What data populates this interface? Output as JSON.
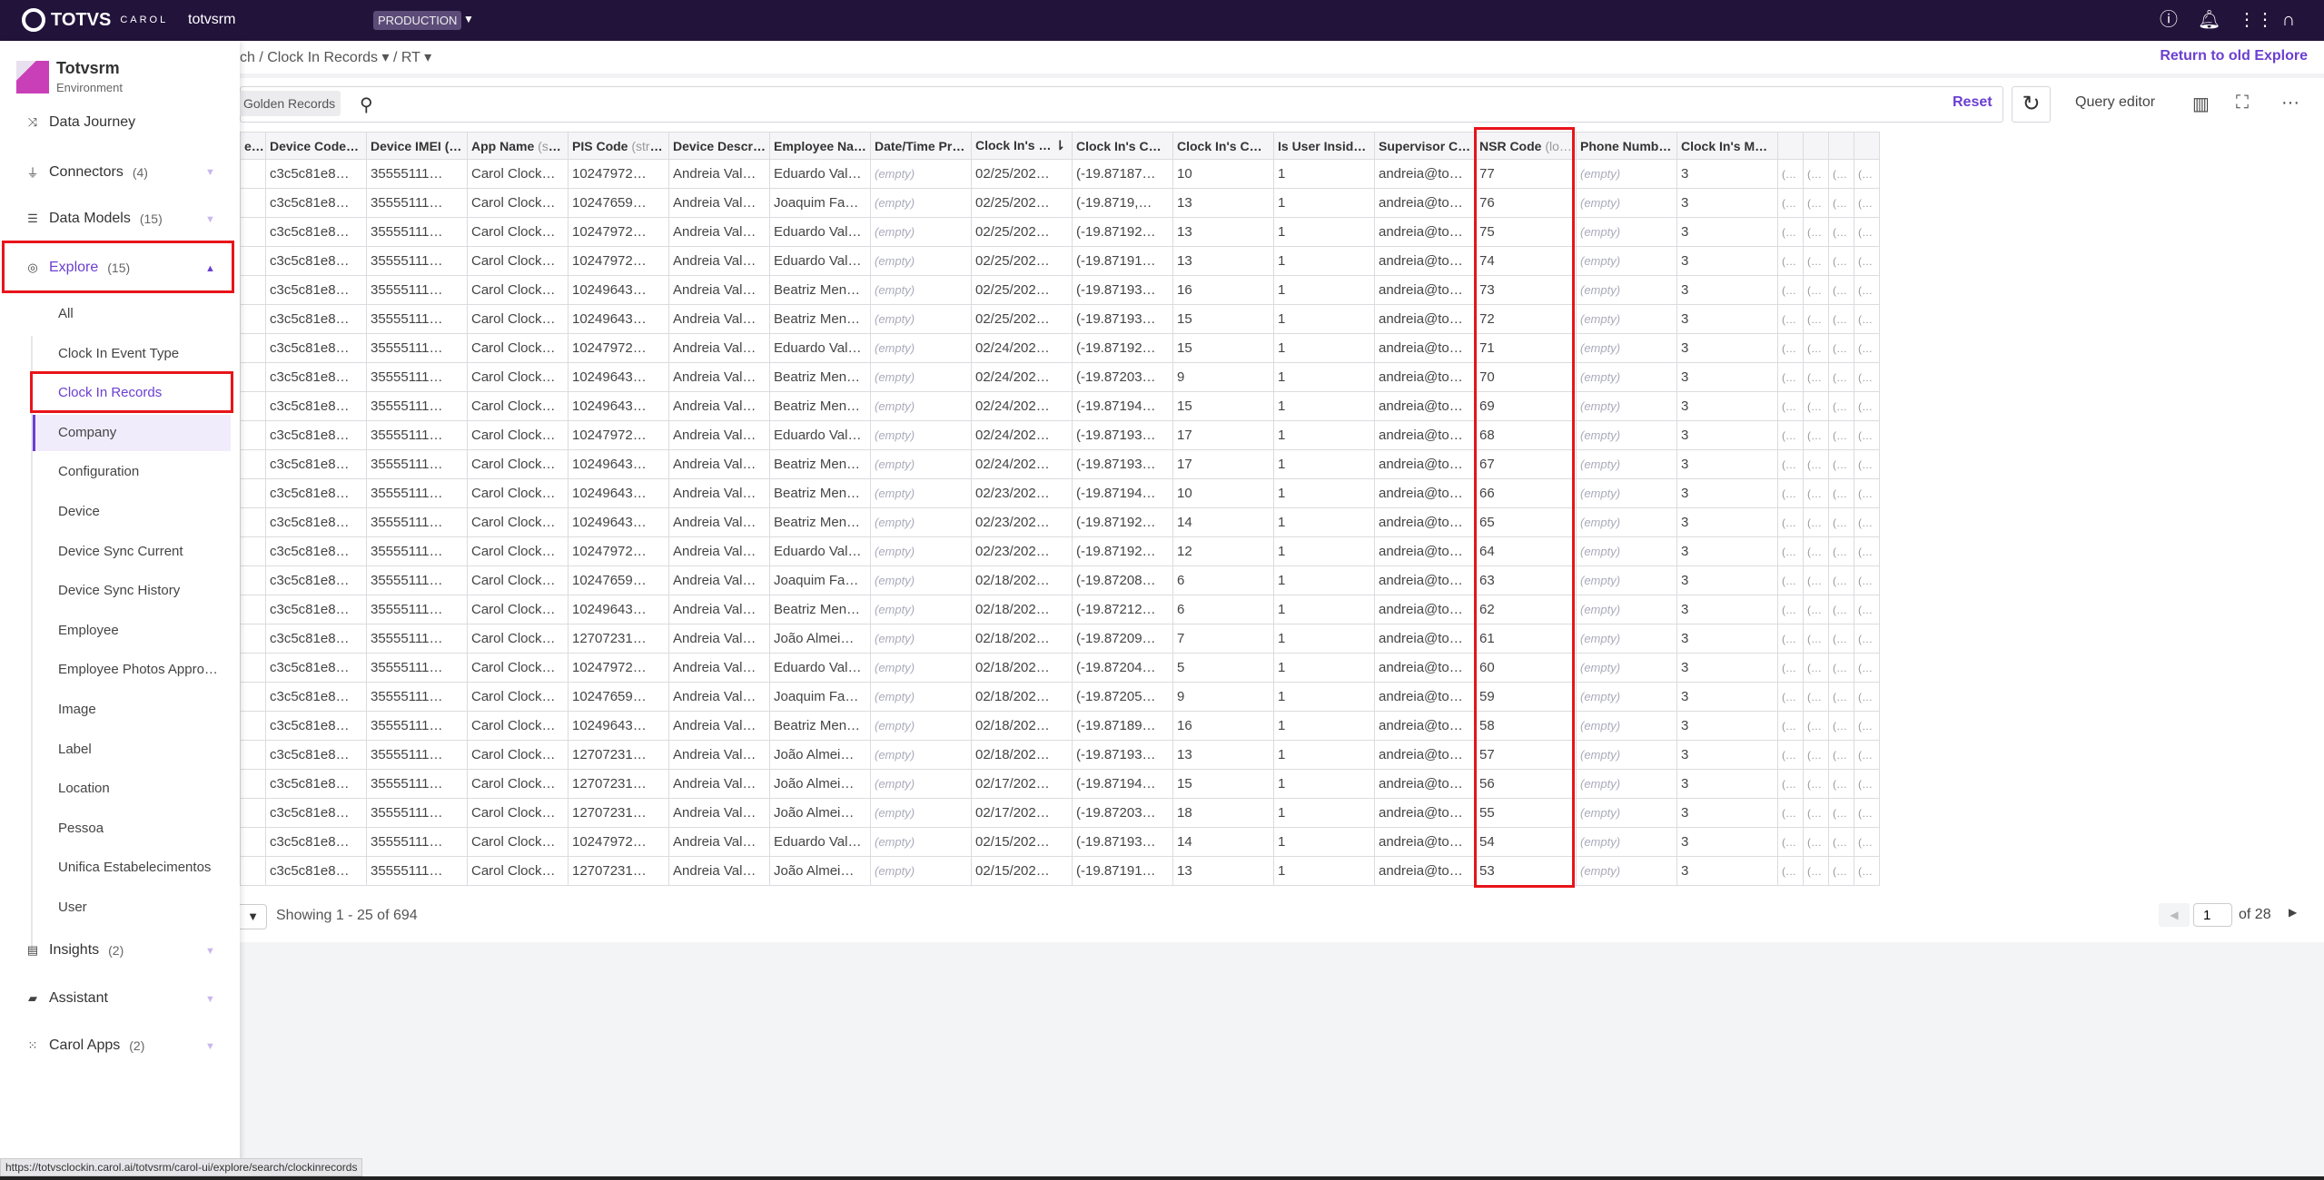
{
  "topbar": {
    "logo": "TOTVS",
    "logo_sub": "CAROL",
    "tenant": "totvsrm",
    "environment": "PRODUCTION",
    "icons": [
      "help-icon",
      "bell-icon",
      "apps-grid-icon",
      "user-avatar-icon"
    ]
  },
  "breadcrumb": {
    "text": "ch / Clock In Records ▾ / RT ▾"
  },
  "return_link": "Return to old Explore",
  "toolbar": {
    "chip": "Golden Records",
    "reset": "Reset",
    "query_editor": "Query editor"
  },
  "sidebar": {
    "brand": "Totvsrm",
    "brand_sub": "Environment",
    "items": [
      {
        "label": "Data Journey",
        "count": "",
        "icon": "shuffle-icon"
      },
      {
        "label": "Connectors",
        "count": "(4)",
        "icon": "plug-icon"
      },
      {
        "label": "Data Models",
        "count": "(15)",
        "icon": "database-icon"
      },
      {
        "label": "Explore",
        "count": "(15)",
        "icon": "compass-icon"
      }
    ],
    "explore_sub": [
      "All",
      "Clock In Event Type",
      "Clock In Records",
      "Company",
      "Configuration",
      "Device",
      "Device Sync Current",
      "Device Sync History",
      "Employee",
      "Employee Photos Appro…",
      "Image",
      "Label",
      "Location",
      "Pessoa",
      "Unifica Estabelecimentos",
      "User"
    ],
    "selected_sub": "Clock In Records",
    "bottom_items": [
      {
        "label": "Insights",
        "count": "(2)",
        "icon": "chart-icon"
      },
      {
        "label": "Assistant",
        "count": "",
        "icon": "chat-icon"
      },
      {
        "label": "Carol Apps",
        "count": "(2)",
        "icon": "grid-icon"
      }
    ]
  },
  "table": {
    "columns": [
      {
        "label": "e6…",
        "type": ""
      },
      {
        "label": "Device Code…",
        "type": ""
      },
      {
        "label": "Device IMEI (…",
        "type": ""
      },
      {
        "label": "App Name ",
        "type": "(st…"
      },
      {
        "label": "PIS Code ",
        "type": "(stri…"
      },
      {
        "label": "Device Descr…",
        "type": ""
      },
      {
        "label": "Employee Na…",
        "type": ""
      },
      {
        "label": "Date/Time Pr…",
        "type": ""
      },
      {
        "label": "Clock In's … ⇂",
        "type": ""
      },
      {
        "label": "Clock In's Co…",
        "type": ""
      },
      {
        "label": "Clock In's Co…",
        "type": ""
      },
      {
        "label": "Is User Inside…",
        "type": ""
      },
      {
        "label": "Supervisor C…",
        "type": ""
      },
      {
        "label": "NSR Code ",
        "type": "(lo…"
      },
      {
        "label": "Phone Numb…",
        "type": ""
      },
      {
        "label": "Clock In's Mo…",
        "type": ""
      },
      {
        "label": "",
        "type": ""
      },
      {
        "label": "",
        "type": ""
      },
      {
        "label": "",
        "type": ""
      },
      {
        "label": "",
        "type": ""
      }
    ],
    "rows": [
      [
        "",
        "c3c5c81e8…",
        "35555111…",
        "Carol Clock…",
        "10247972…",
        "Andreia Val…",
        "Eduardo Val…",
        "(empty)",
        "02/25/202…",
        "(-19.87187…",
        "10",
        "1",
        "andreia@to…",
        "77",
        "(empty)",
        "3",
        "(…",
        "(…",
        "(…",
        "(…"
      ],
      [
        "",
        "c3c5c81e8…",
        "35555111…",
        "Carol Clock…",
        "10247659…",
        "Andreia Val…",
        "Joaquim Fa…",
        "(empty)",
        "02/25/202…",
        "(-19.8719,…",
        "13",
        "1",
        "andreia@to…",
        "76",
        "(empty)",
        "3",
        "(…",
        "(…",
        "(…",
        "(…"
      ],
      [
        "",
        "c3c5c81e8…",
        "35555111…",
        "Carol Clock…",
        "10247972…",
        "Andreia Val…",
        "Eduardo Val…",
        "(empty)",
        "02/25/202…",
        "(-19.87192…",
        "13",
        "1",
        "andreia@to…",
        "75",
        "(empty)",
        "3",
        "(…",
        "(…",
        "(…",
        "(…"
      ],
      [
        "",
        "c3c5c81e8…",
        "35555111…",
        "Carol Clock…",
        "10247972…",
        "Andreia Val…",
        "Eduardo Val…",
        "(empty)",
        "02/25/202…",
        "(-19.87191…",
        "13",
        "1",
        "andreia@to…",
        "74",
        "(empty)",
        "3",
        "(…",
        "(…",
        "(…",
        "(…"
      ],
      [
        "",
        "c3c5c81e8…",
        "35555111…",
        "Carol Clock…",
        "10249643…",
        "Andreia Val…",
        "Beatriz Men…",
        "(empty)",
        "02/25/202…",
        "(-19.87193…",
        "16",
        "1",
        "andreia@to…",
        "73",
        "(empty)",
        "3",
        "(…",
        "(…",
        "(…",
        "(…"
      ],
      [
        "",
        "c3c5c81e8…",
        "35555111…",
        "Carol Clock…",
        "10249643…",
        "Andreia Val…",
        "Beatriz Men…",
        "(empty)",
        "02/25/202…",
        "(-19.87193…",
        "15",
        "1",
        "andreia@to…",
        "72",
        "(empty)",
        "3",
        "(…",
        "(…",
        "(…",
        "(…"
      ],
      [
        "",
        "c3c5c81e8…",
        "35555111…",
        "Carol Clock…",
        "10247972…",
        "Andreia Val…",
        "Eduardo Val…",
        "(empty)",
        "02/24/202…",
        "(-19.87192…",
        "15",
        "1",
        "andreia@to…",
        "71",
        "(empty)",
        "3",
        "(…",
        "(…",
        "(…",
        "(…"
      ],
      [
        "",
        "c3c5c81e8…",
        "35555111…",
        "Carol Clock…",
        "10249643…",
        "Andreia Val…",
        "Beatriz Men…",
        "(empty)",
        "02/24/202…",
        "(-19.87203…",
        "9",
        "1",
        "andreia@to…",
        "70",
        "(empty)",
        "3",
        "(…",
        "(…",
        "(…",
        "(…"
      ],
      [
        "",
        "c3c5c81e8…",
        "35555111…",
        "Carol Clock…",
        "10249643…",
        "Andreia Val…",
        "Beatriz Men…",
        "(empty)",
        "02/24/202…",
        "(-19.87194…",
        "15",
        "1",
        "andreia@to…",
        "69",
        "(empty)",
        "3",
        "(…",
        "(…",
        "(…",
        "(…"
      ],
      [
        "",
        "c3c5c81e8…",
        "35555111…",
        "Carol Clock…",
        "10247972…",
        "Andreia Val…",
        "Eduardo Val…",
        "(empty)",
        "02/24/202…",
        "(-19.87193…",
        "17",
        "1",
        "andreia@to…",
        "68",
        "(empty)",
        "3",
        "(…",
        "(…",
        "(…",
        "(…"
      ],
      [
        "",
        "c3c5c81e8…",
        "35555111…",
        "Carol Clock…",
        "10249643…",
        "Andreia Val…",
        "Beatriz Men…",
        "(empty)",
        "02/24/202…",
        "(-19.87193…",
        "17",
        "1",
        "andreia@to…",
        "67",
        "(empty)",
        "3",
        "(…",
        "(…",
        "(…",
        "(…"
      ],
      [
        "",
        "c3c5c81e8…",
        "35555111…",
        "Carol Clock…",
        "10249643…",
        "Andreia Val…",
        "Beatriz Men…",
        "(empty)",
        "02/23/202…",
        "(-19.87194…",
        "10",
        "1",
        "andreia@to…",
        "66",
        "(empty)",
        "3",
        "(…",
        "(…",
        "(…",
        "(…"
      ],
      [
        "",
        "c3c5c81e8…",
        "35555111…",
        "Carol Clock…",
        "10249643…",
        "Andreia Val…",
        "Beatriz Men…",
        "(empty)",
        "02/23/202…",
        "(-19.87192…",
        "14",
        "1",
        "andreia@to…",
        "65",
        "(empty)",
        "3",
        "(…",
        "(…",
        "(…",
        "(…"
      ],
      [
        "",
        "c3c5c81e8…",
        "35555111…",
        "Carol Clock…",
        "10247972…",
        "Andreia Val…",
        "Eduardo Val…",
        "(empty)",
        "02/23/202…",
        "(-19.87192…",
        "12",
        "1",
        "andreia@to…",
        "64",
        "(empty)",
        "3",
        "(…",
        "(…",
        "(…",
        "(…"
      ],
      [
        "",
        "c3c5c81e8…",
        "35555111…",
        "Carol Clock…",
        "10247659…",
        "Andreia Val…",
        "Joaquim Fa…",
        "(empty)",
        "02/18/202…",
        "(-19.87208…",
        "6",
        "1",
        "andreia@to…",
        "63",
        "(empty)",
        "3",
        "(…",
        "(…",
        "(…",
        "(…"
      ],
      [
        "",
        "c3c5c81e8…",
        "35555111…",
        "Carol Clock…",
        "10249643…",
        "Andreia Val…",
        "Beatriz Men…",
        "(empty)",
        "02/18/202…",
        "(-19.87212…",
        "6",
        "1",
        "andreia@to…",
        "62",
        "(empty)",
        "3",
        "(…",
        "(…",
        "(…",
        "(…"
      ],
      [
        "",
        "c3c5c81e8…",
        "35555111…",
        "Carol Clock…",
        "12707231…",
        "Andreia Val…",
        "João Almei…",
        "(empty)",
        "02/18/202…",
        "(-19.87209…",
        "7",
        "1",
        "andreia@to…",
        "61",
        "(empty)",
        "3",
        "(…",
        "(…",
        "(…",
        "(…"
      ],
      [
        "",
        "c3c5c81e8…",
        "35555111…",
        "Carol Clock…",
        "10247972…",
        "Andreia Val…",
        "Eduardo Val…",
        "(empty)",
        "02/18/202…",
        "(-19.87204…",
        "5",
        "1",
        "andreia@to…",
        "60",
        "(empty)",
        "3",
        "(…",
        "(…",
        "(…",
        "(…"
      ],
      [
        "",
        "c3c5c81e8…",
        "35555111…",
        "Carol Clock…",
        "10247659…",
        "Andreia Val…",
        "Joaquim Fa…",
        "(empty)",
        "02/18/202…",
        "(-19.87205…",
        "9",
        "1",
        "andreia@to…",
        "59",
        "(empty)",
        "3",
        "(…",
        "(…",
        "(…",
        "(…"
      ],
      [
        "",
        "c3c5c81e8…",
        "35555111…",
        "Carol Clock…",
        "10249643…",
        "Andreia Val…",
        "Beatriz Men…",
        "(empty)",
        "02/18/202…",
        "(-19.87189…",
        "16",
        "1",
        "andreia@to…",
        "58",
        "(empty)",
        "3",
        "(…",
        "(…",
        "(…",
        "(…"
      ],
      [
        "",
        "c3c5c81e8…",
        "35555111…",
        "Carol Clock…",
        "12707231…",
        "Andreia Val…",
        "João Almei…",
        "(empty)",
        "02/18/202…",
        "(-19.87193…",
        "13",
        "1",
        "andreia@to…",
        "57",
        "(empty)",
        "3",
        "(…",
        "(…",
        "(…",
        "(…"
      ],
      [
        "",
        "c3c5c81e8…",
        "35555111…",
        "Carol Clock…",
        "12707231…",
        "Andreia Val…",
        "João Almei…",
        "(empty)",
        "02/17/202…",
        "(-19.87194…",
        "15",
        "1",
        "andreia@to…",
        "56",
        "(empty)",
        "3",
        "(…",
        "(…",
        "(…",
        "(…"
      ],
      [
        "",
        "c3c5c81e8…",
        "35555111…",
        "Carol Clock…",
        "12707231…",
        "Andreia Val…",
        "João Almei…",
        "(empty)",
        "02/17/202…",
        "(-19.87203…",
        "18",
        "1",
        "andreia@to…",
        "55",
        "(empty)",
        "3",
        "(…",
        "(…",
        "(…",
        "(…"
      ],
      [
        "",
        "c3c5c81e8…",
        "35555111…",
        "Carol Clock…",
        "10247972…",
        "Andreia Val…",
        "Eduardo Val…",
        "(empty)",
        "02/15/202…",
        "(-19.87193…",
        "14",
        "1",
        "andreia@to…",
        "54",
        "(empty)",
        "3",
        "(…",
        "(…",
        "(…",
        "(…"
      ],
      [
        "",
        "c3c5c81e8…",
        "35555111…",
        "Carol Clock…",
        "12707231…",
        "Andreia Val…",
        "João Almei…",
        "(empty)",
        "02/15/202…",
        "(-19.87191…",
        "13",
        "1",
        "andreia@to…",
        "53",
        "(empty)",
        "3",
        "(…",
        "(…",
        "(…",
        "(…"
      ]
    ]
  },
  "footer": {
    "showing": "Showing 1 - 25 of 694",
    "page": "1",
    "of_pages": "of 28"
  },
  "status_url": "https://totvsclockin.carol.ai/totvsrm/carol-ui/explore/search/clockinrecords",
  "colors": {
    "topbar": "#22133b",
    "accent": "#6b3fd1",
    "highlight": "#e8141a"
  }
}
